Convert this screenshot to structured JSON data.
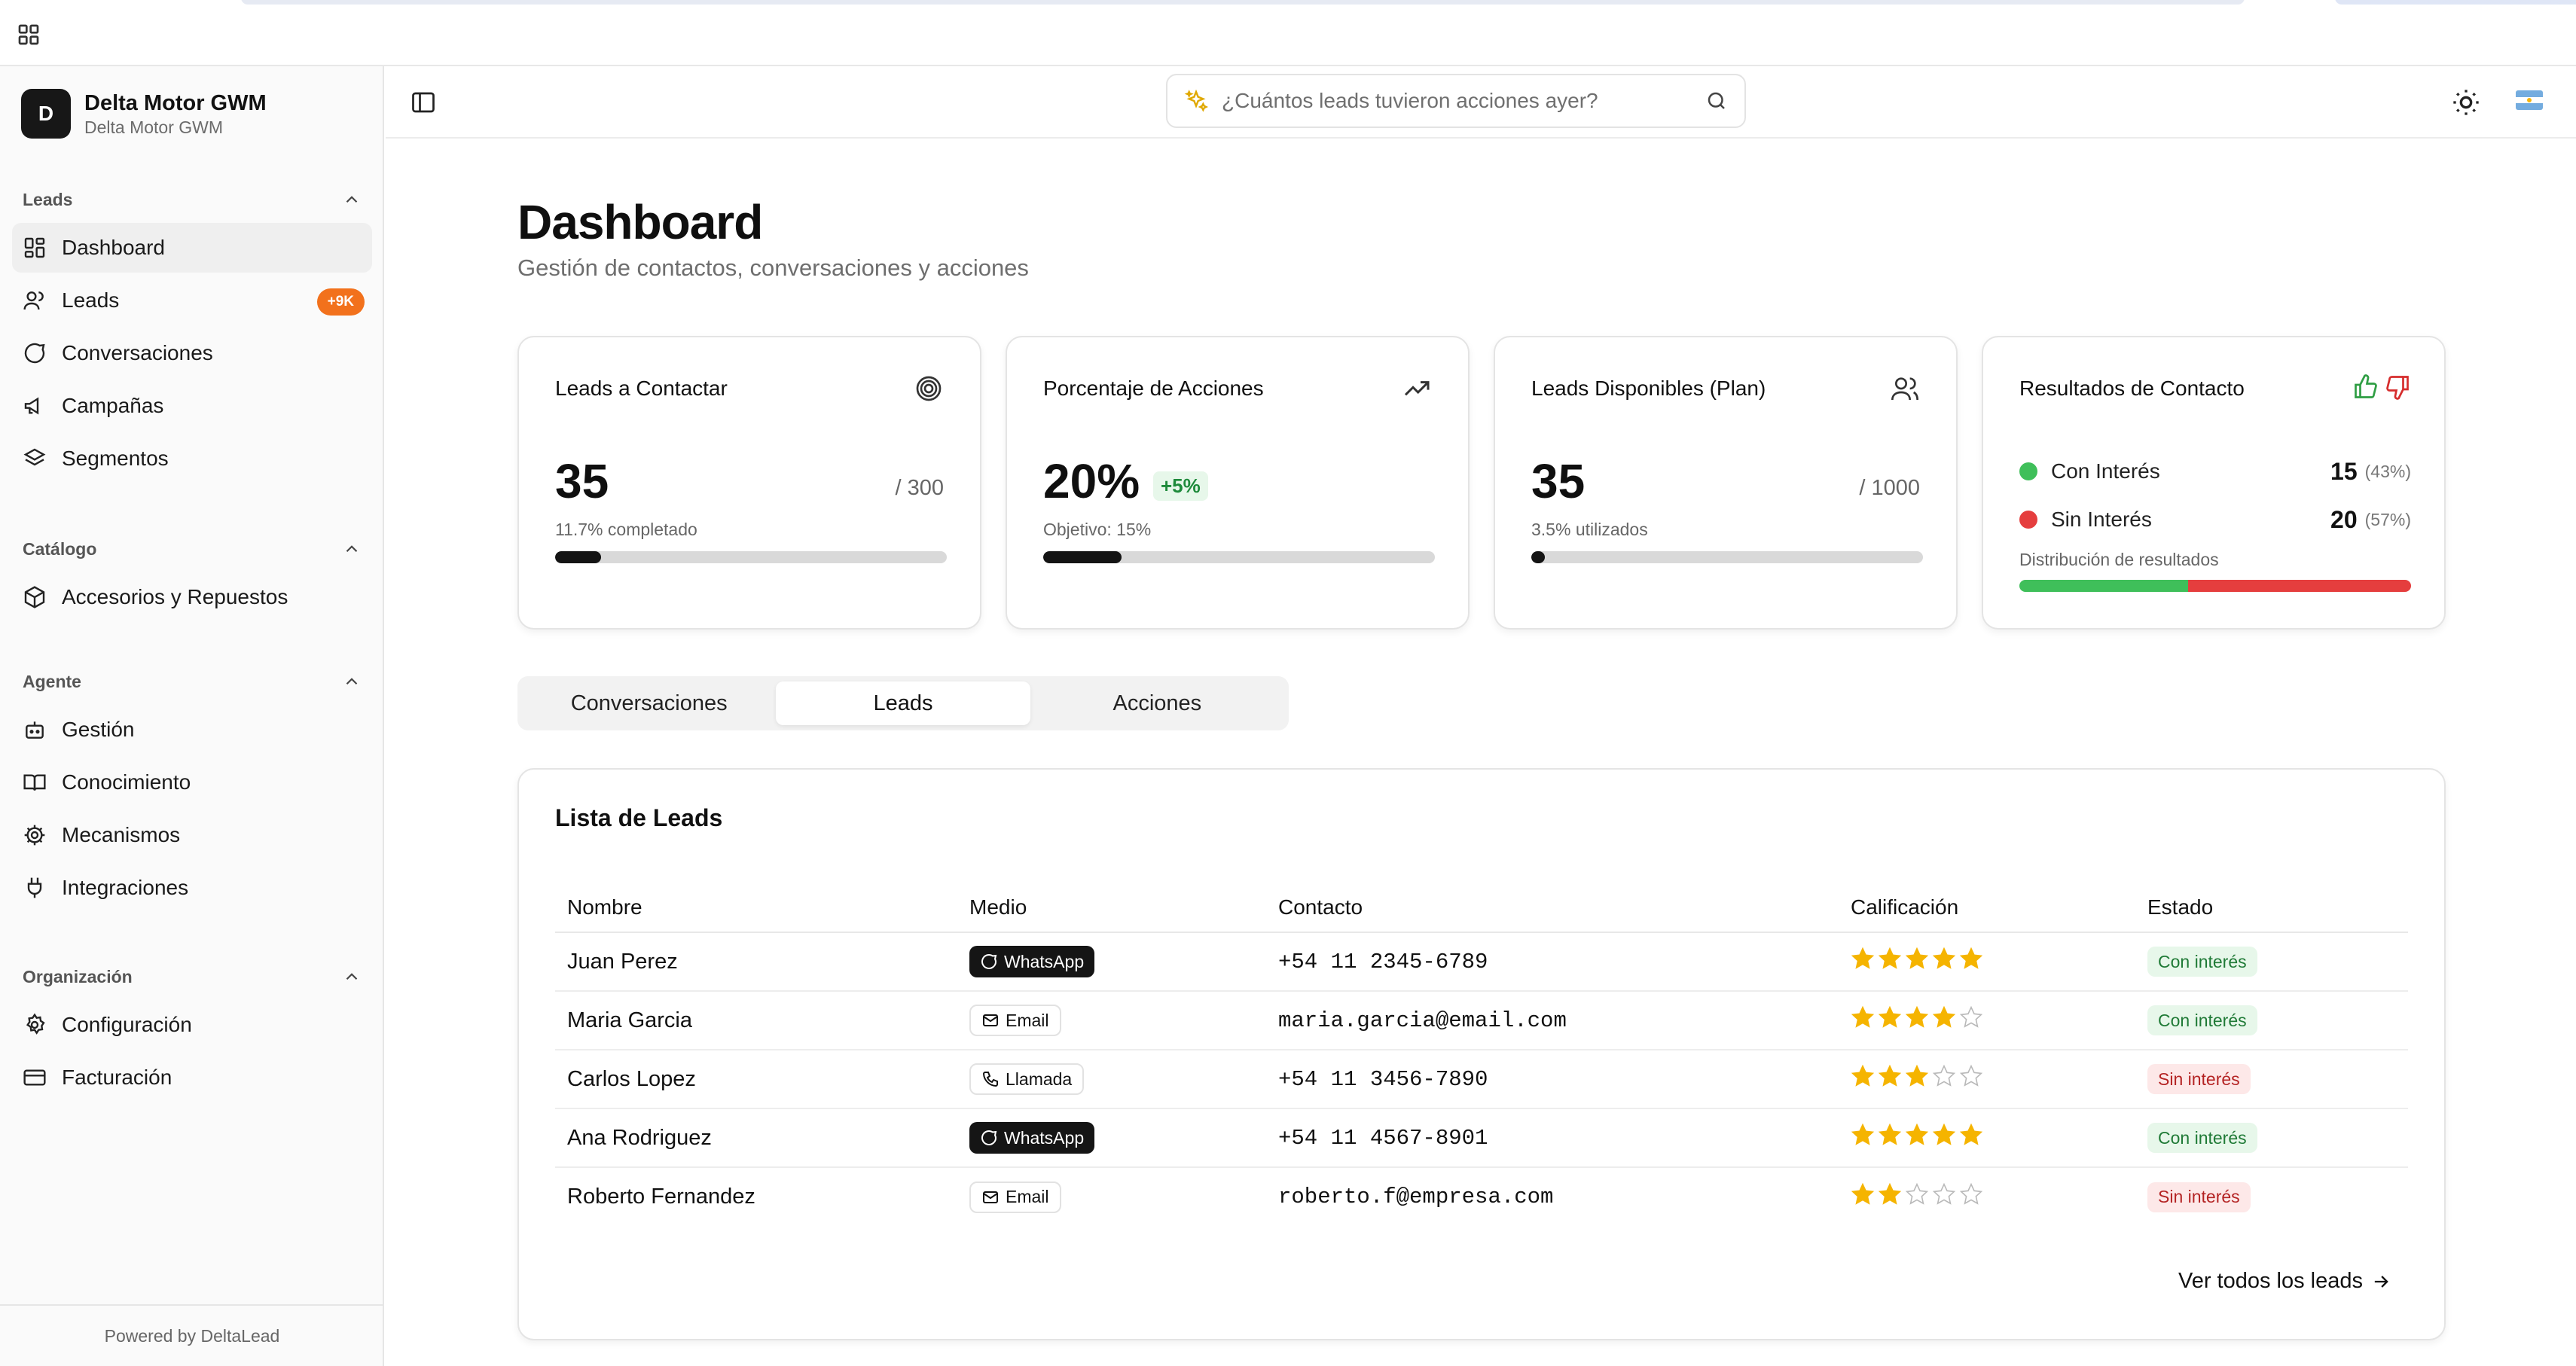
{
  "brand": {
    "initial": "D",
    "name": "Delta Motor GWM",
    "subtitle": "Delta Motor GWM"
  },
  "sidebar": {
    "groups": [
      {
        "label": "Leads",
        "items": [
          {
            "label": "Dashboard",
            "icon": "dashboard-icon",
            "active": true
          },
          {
            "label": "Leads",
            "icon": "users-icon",
            "badge": "+9K"
          },
          {
            "label": "Conversaciones",
            "icon": "chat-icon"
          },
          {
            "label": "Campañas",
            "icon": "megaphone-icon"
          },
          {
            "label": "Segmentos",
            "icon": "layers-icon"
          }
        ]
      },
      {
        "label": "Catálogo",
        "items": [
          {
            "label": "Accesorios y Repuestos",
            "icon": "package-icon"
          }
        ]
      },
      {
        "label": "Agente",
        "items": [
          {
            "label": "Gestión",
            "icon": "bot-icon"
          },
          {
            "label": "Conocimiento",
            "icon": "book-icon"
          },
          {
            "label": "Mecanismos",
            "icon": "cog-icon"
          },
          {
            "label": "Integraciones",
            "icon": "plug-icon"
          }
        ]
      },
      {
        "label": "Organización",
        "items": [
          {
            "label": "Configuración",
            "icon": "settings-icon"
          },
          {
            "label": "Facturación",
            "icon": "credit-card-icon"
          }
        ]
      }
    ],
    "footer": "Powered by DeltaLead"
  },
  "search": {
    "placeholder": "¿Cuántos leads tuvieron acciones ayer?"
  },
  "page": {
    "title": "Dashboard",
    "subtitle": "Gestión de contactos, conversaciones y acciones"
  },
  "cards": {
    "contactar": {
      "title": "Leads a Contactar",
      "value": "35",
      "total": "/ 300",
      "caption": "11.7% completado",
      "progress": 0.117
    },
    "acciones": {
      "title": "Porcentaje de Acciones",
      "value": "20%",
      "delta": "+5%",
      "caption": "Objetivo: 15%",
      "progress": 0.2
    },
    "disponibles": {
      "title": "Leads Disponibles (Plan)",
      "value": "35",
      "total": "/ 1000",
      "caption": "3.5% utilizados",
      "progress": 0.035
    },
    "resultados": {
      "title": "Resultados de Contacto",
      "con_label": "Con Interés",
      "con_value": "15",
      "con_pct": "(43%)",
      "con_share": 0.43,
      "sin_label": "Sin Interés",
      "sin_value": "20",
      "sin_pct": "(57%)",
      "sin_share": 0.57,
      "caption": "Distribución de resultados",
      "colors": {
        "positive": "#3fbf5a",
        "negative": "#e53e3e"
      }
    }
  },
  "tabs": [
    {
      "label": "Conversaciones",
      "active": false
    },
    {
      "label": "Leads",
      "active": true
    },
    {
      "label": "Acciones",
      "active": false
    }
  ],
  "leads": {
    "title": "Lista de Leads",
    "columns": [
      "Nombre",
      "Medio",
      "Contacto",
      "Calificación",
      "Estado"
    ],
    "rows": [
      {
        "name": "Juan Perez",
        "medium": "WhatsApp",
        "contact": "+54 11 2345-6789",
        "rating": 5,
        "status": "Con interés"
      },
      {
        "name": "Maria Garcia",
        "medium": "Email",
        "contact": "maria.garcia@email.com",
        "rating": 4,
        "status": "Con interés"
      },
      {
        "name": "Carlos Lopez",
        "medium": "Llamada",
        "contact": "+54 11 3456-7890",
        "rating": 3,
        "status": "Sin interés"
      },
      {
        "name": "Ana Rodriguez",
        "medium": "WhatsApp",
        "contact": "+54 11 4567-8901",
        "rating": 5,
        "status": "Con interés"
      },
      {
        "name": "Roberto Fernandez",
        "medium": "Email",
        "contact": "roberto.f@empresa.com",
        "rating": 2,
        "status": "Sin interés"
      }
    ],
    "see_all": "Ver todos los leads"
  },
  "colors": {
    "accent_badge": "#f2711c",
    "star": "#f5b400"
  }
}
